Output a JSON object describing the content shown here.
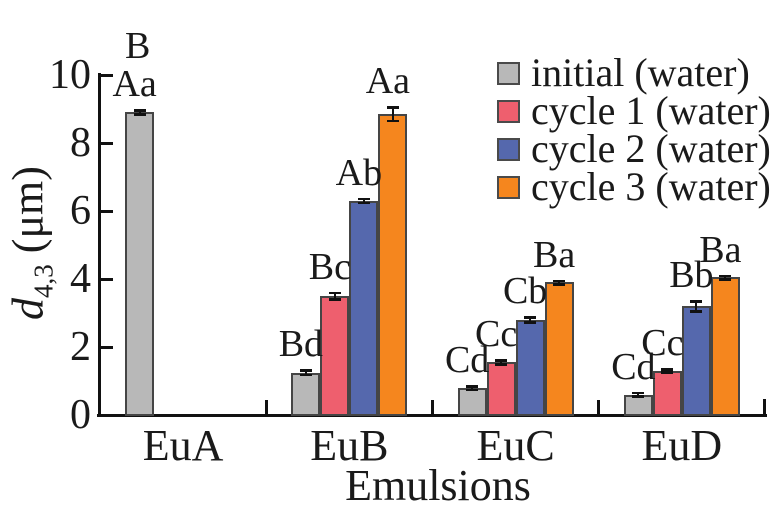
{
  "chart_data": {
    "type": "bar",
    "title": "",
    "xlabel": "Emulsions",
    "ylabel": "d4,3 (μm)",
    "ylabel_parts": {
      "symbol": "d",
      "subscript": "4,3",
      "unit": "(μm)"
    },
    "categories": [
      "EuA",
      "EuB",
      "EuC",
      "EuD"
    ],
    "ylim": [
      0,
      10
    ],
    "yticks": [
      0,
      2,
      4,
      6,
      8,
      10
    ],
    "grid": false,
    "legend_position": "upper right",
    "series": [
      {
        "name": "initial (water)",
        "color": "#b8b8b8",
        "values": [
          8.9,
          1.25,
          0.8,
          0.6
        ],
        "errors": [
          0.06,
          0.06,
          0.05,
          0.05
        ],
        "sig_labels": [
          "Aa",
          "Bd",
          "Cd",
          "Cd"
        ]
      },
      {
        "name": "cycle 1 (water)",
        "color": "#ee5f6e",
        "values": [
          0,
          3.5,
          1.55,
          1.3
        ],
        "errors": [
          0,
          0.1,
          0.06,
          0.04
        ],
        "sig_labels": [
          "",
          "Bc",
          "Cc",
          "Cc"
        ]
      },
      {
        "name": "cycle 2 (water)",
        "color": "#5568ad",
        "values": [
          0,
          6.3,
          2.8,
          3.2
        ],
        "errors": [
          0,
          0.06,
          0.07,
          0.15
        ],
        "sig_labels": [
          "",
          "Ab",
          "Cb",
          "Bb"
        ]
      },
      {
        "name": "cycle 3 (water)",
        "color": "#f5861e",
        "values": [
          0,
          8.85,
          3.9,
          4.05
        ],
        "errors": [
          0,
          0.2,
          0.05,
          0.05
        ],
        "sig_labels": [
          "",
          "Aa",
          "Ba",
          "Ba"
        ]
      }
    ],
    "group_annotations": [
      "B",
      "",
      "",
      ""
    ]
  },
  "style": {
    "axis_color": "#111111",
    "text_color": "#1a1a1a",
    "bar_border_color": "#454545",
    "background": "#ffffff"
  }
}
